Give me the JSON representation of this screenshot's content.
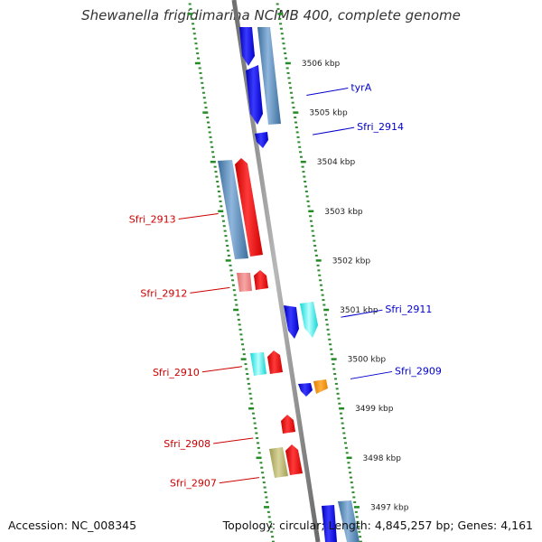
{
  "title": "Shewanella frigidimarina NCIMB 400, complete genome",
  "footer": {
    "accession": "Accession: NC_008345",
    "summary": "Topology: circular; Length: 4,845,257 bp; Genes: 4,161"
  },
  "colors": {
    "backbone": "#8a8a8a",
    "tick_major": "#228b22",
    "tick_minor": "#2e8b2e",
    "forward_label": "#0000cc",
    "reverse_label": "#cc0000"
  },
  "scale": {
    "unit": "kbp",
    "ticks": [
      {
        "kbp": 3506,
        "label": "3506 kbp"
      },
      {
        "kbp": 3505,
        "label": "3505 kbp"
      },
      {
        "kbp": 3504,
        "label": "3504 kbp"
      },
      {
        "kbp": 3503,
        "label": "3503 kbp"
      },
      {
        "kbp": 3502,
        "label": "3502 kbp"
      },
      {
        "kbp": 3501,
        "label": "3501 kbp"
      },
      {
        "kbp": 3500,
        "label": "3500 kbp"
      },
      {
        "kbp": 3499,
        "label": "3499 kbp"
      },
      {
        "kbp": 3498,
        "label": "3498 kbp"
      },
      {
        "kbp": 3497,
        "label": "3497 kbp"
      }
    ]
  },
  "gene_labels": {
    "forward": [
      {
        "name": "tyrA",
        "kbp": 3505.35
      },
      {
        "name": "Sfri_2914",
        "kbp": 3504.55
      },
      {
        "name": "Sfri_2911",
        "kbp": 3500.85
      },
      {
        "name": "Sfri_2909",
        "kbp": 3499.6
      }
    ],
    "reverse": [
      {
        "name": "Sfri_2913",
        "kbp": 3502.95
      },
      {
        "name": "Sfri_2912",
        "kbp": 3501.45
      },
      {
        "name": "Sfri_2910",
        "kbp": 3499.85
      },
      {
        "name": "Sfri_2908",
        "kbp": 3498.4
      },
      {
        "name": "Sfri_2907",
        "kbp": 3497.6
      }
    ]
  }
}
